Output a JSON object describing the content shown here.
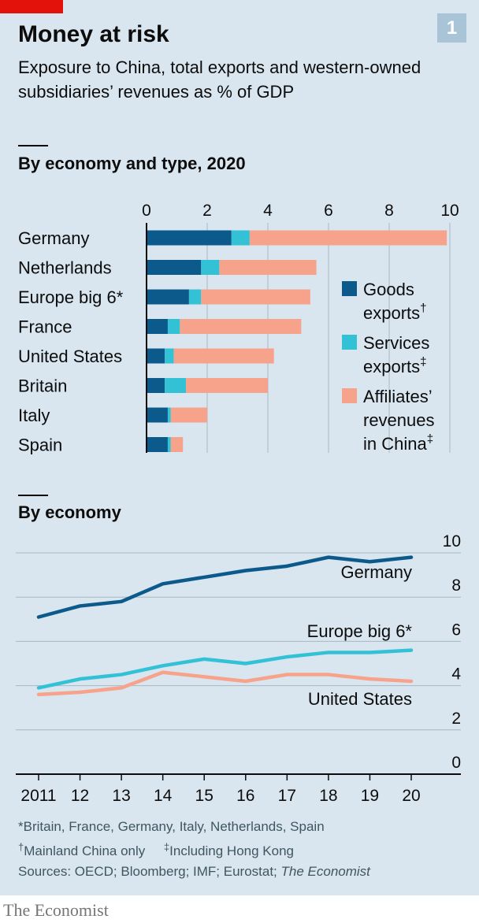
{
  "header": {
    "number": "1",
    "title": "Money at risk",
    "subtitle": "Exposure to China, total exports and western-owned subsidiaries’ revenues as % of GDP"
  },
  "colors": {
    "goods": "#0c5a8c",
    "services": "#33c1d6",
    "affiliates": "#f7a38c",
    "background": "#d9e6ef",
    "grid": "#a8b8c2",
    "brand_red": "#e3120b"
  },
  "chart_data": [
    {
      "type": "bar",
      "orientation": "horizontal",
      "stacked": true,
      "title": "By economy and type, 2020",
      "categories": [
        "Germany",
        "Netherlands",
        "Europe big 6*",
        "France",
        "United States",
        "Britain",
        "Italy",
        "Spain"
      ],
      "series": [
        {
          "name": "Goods exports†",
          "values": [
            2.8,
            1.8,
            1.4,
            0.7,
            0.6,
            0.6,
            0.7,
            0.7
          ]
        },
        {
          "name": "Services exports‡",
          "values": [
            0.6,
            0.6,
            0.4,
            0.4,
            0.3,
            0.7,
            0.1,
            0.1
          ]
        },
        {
          "name": "Affiliates’ revenues in China‡",
          "values": [
            6.5,
            3.2,
            3.6,
            4.0,
            3.3,
            2.7,
            1.2,
            0.4
          ]
        }
      ],
      "xlim": [
        0,
        10
      ],
      "xticks": [
        "0",
        "2",
        "4",
        "6",
        "8",
        "10"
      ],
      "grid": true,
      "legend_position": "right"
    },
    {
      "type": "line",
      "title": "By economy",
      "x": [
        "2011",
        "12",
        "13",
        "14",
        "15",
        "16",
        "17",
        "18",
        "19",
        "20"
      ],
      "series": [
        {
          "name": "Germany",
          "values": [
            7.1,
            7.6,
            7.8,
            8.6,
            8.9,
            9.2,
            9.4,
            9.8,
            9.6,
            9.8
          ]
        },
        {
          "name": "Europe big 6*",
          "values": [
            3.9,
            4.3,
            4.5,
            4.9,
            5.2,
            5.0,
            5.3,
            5.5,
            5.5,
            5.6
          ]
        },
        {
          "name": "United States",
          "values": [
            3.6,
            3.7,
            3.9,
            4.6,
            4.4,
            4.2,
            4.5,
            4.5,
            4.3,
            4.2
          ]
        }
      ],
      "ylim": [
        0,
        10
      ],
      "yticks": [
        "0",
        "2",
        "4",
        "6",
        "8",
        "10"
      ],
      "axis_position": "right",
      "grid": true
    }
  ],
  "footnotes": {
    "star": "*Britain, France, Germany, Italy, Netherlands, Spain",
    "dagger_mark": "†",
    "dagger": "Mainland China only",
    "ddagger_mark": "‡",
    "ddagger": "Including Hong Kong",
    "sources": "Sources: OECD; Bloomberg; IMF; Eurostat; ",
    "sources_italic": "The Economist"
  },
  "brand": "The Economist"
}
